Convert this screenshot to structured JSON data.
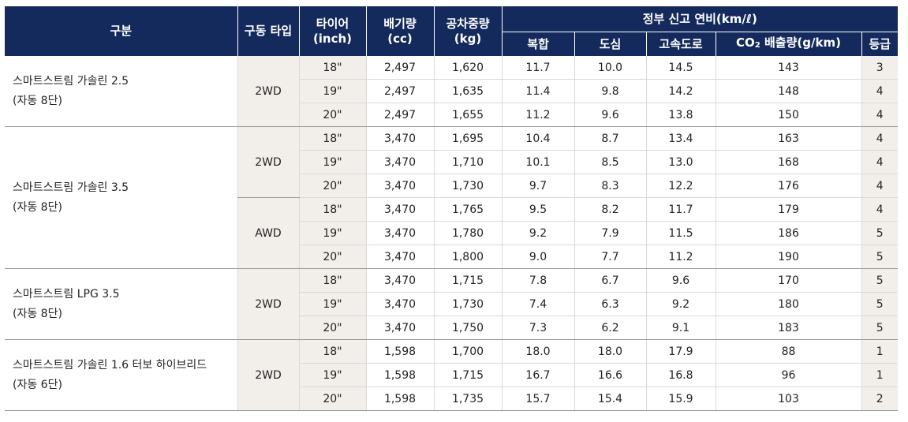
{
  "header": {
    "col_model": "구분",
    "col_drive": "구동 타입",
    "col_tire_line1": "타이어",
    "col_tire_line2": "(inch)",
    "col_disp_line1": "배기량",
    "col_disp_line2": "(cc)",
    "col_weight_line1": "공차중량",
    "col_weight_line2": "(kg)",
    "col_fuel_group": "정부 신고 연비(km/ℓ)",
    "col_combined": "복합",
    "col_city": "도심",
    "col_highway": "고속도로",
    "col_co2_prefix": "CO",
    "col_co2_sub": "2",
    "col_co2_suffix": " 배출량(g/km)",
    "col_grade": "등급"
  },
  "models": [
    {
      "name_line1": "스마트스트림 가솔린 2.5",
      "name_line2": "(자동 8단)",
      "drives": [
        {
          "drive": "2WD",
          "rows": [
            {
              "tire": "18\"",
              "displacement": "2,497",
              "weight": "1,620",
              "combined": "11.7",
              "city": "10.0",
              "highway": "14.5",
              "co2": "143",
              "grade": "3"
            },
            {
              "tire": "19\"",
              "displacement": "2,497",
              "weight": "1,635",
              "combined": "11.4",
              "city": "9.8",
              "highway": "14.2",
              "co2": "148",
              "grade": "4"
            },
            {
              "tire": "20\"",
              "displacement": "2,497",
              "weight": "1,655",
              "combined": "11.2",
              "city": "9.6",
              "highway": "13.8",
              "co2": "150",
              "grade": "4"
            }
          ]
        }
      ]
    },
    {
      "name_line1": "스마트스트림 가솔린 3.5",
      "name_line2": "(자동 8단)",
      "drives": [
        {
          "drive": "2WD",
          "rows": [
            {
              "tire": "18\"",
              "displacement": "3,470",
              "weight": "1,695",
              "combined": "10.4",
              "city": "8.7",
              "highway": "13.4",
              "co2": "163",
              "grade": "4"
            },
            {
              "tire": "19\"",
              "displacement": "3,470",
              "weight": "1,710",
              "combined": "10.1",
              "city": "8.5",
              "highway": "13.0",
              "co2": "168",
              "grade": "4"
            },
            {
              "tire": "20\"",
              "displacement": "3,470",
              "weight": "1,730",
              "combined": "9.7",
              "city": "8.3",
              "highway": "12.2",
              "co2": "176",
              "grade": "4"
            }
          ]
        },
        {
          "drive": "AWD",
          "rows": [
            {
              "tire": "18\"",
              "displacement": "3,470",
              "weight": "1,765",
              "combined": "9.5",
              "city": "8.2",
              "highway": "11.7",
              "co2": "179",
              "grade": "4"
            },
            {
              "tire": "19\"",
              "displacement": "3,470",
              "weight": "1,780",
              "combined": "9.2",
              "city": "7.9",
              "highway": "11.5",
              "co2": "186",
              "grade": "5"
            },
            {
              "tire": "20\"",
              "displacement": "3,470",
              "weight": "1,800",
              "combined": "9.0",
              "city": "7.7",
              "highway": "11.2",
              "co2": "190",
              "grade": "5"
            }
          ]
        }
      ]
    },
    {
      "name_line1": "스마트스트림 LPG 3.5",
      "name_line2": "(자동 8단)",
      "drives": [
        {
          "drive": "2WD",
          "rows": [
            {
              "tire": "18\"",
              "displacement": "3,470",
              "weight": "1,715",
              "combined": "7.8",
              "city": "6.7",
              "highway": "9.6",
              "co2": "170",
              "grade": "5"
            },
            {
              "tire": "19\"",
              "displacement": "3,470",
              "weight": "1,730",
              "combined": "7.4",
              "city": "6.3",
              "highway": "9.2",
              "co2": "180",
              "grade": "5"
            },
            {
              "tire": "20\"",
              "displacement": "3,470",
              "weight": "1,750",
              "combined": "7.3",
              "city": "6.2",
              "highway": "9.1",
              "co2": "183",
              "grade": "5"
            }
          ]
        }
      ]
    },
    {
      "name_line1": "스마트스트림 가솔린 1.6 터보 하이브리드",
      "name_line2": "(자동 6단)",
      "drives": [
        {
          "drive": "2WD",
          "rows": [
            {
              "tire": "18\"",
              "displacement": "1,598",
              "weight": "1,700",
              "combined": "18.0",
              "city": "18.0",
              "highway": "17.9",
              "co2": "88",
              "grade": "1"
            },
            {
              "tire": "19\"",
              "displacement": "1,598",
              "weight": "1,715",
              "combined": "16.7",
              "city": "16.6",
              "highway": "16.8",
              "co2": "96",
              "grade": "1"
            },
            {
              "tire": "20\"",
              "displacement": "1,598",
              "weight": "1,735",
              "combined": "15.7",
              "city": "15.4",
              "highway": "15.9",
              "co2": "103",
              "grade": "2"
            }
          ]
        }
      ]
    }
  ]
}
